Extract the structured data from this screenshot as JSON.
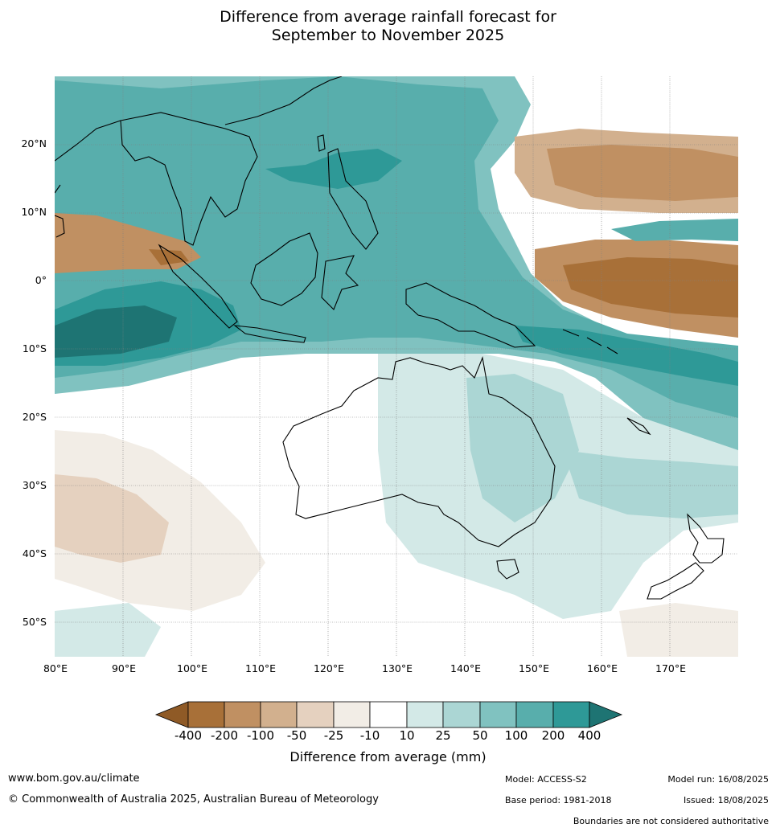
{
  "title_line1": "Difference from average rainfall forecast for",
  "title_line2": "September to November 2025",
  "lat_labels": [
    "20°N",
    "10°N",
    "0°",
    "10°S",
    "20°S",
    "30°S",
    "40°S",
    "50°S"
  ],
  "lon_labels": [
    "80°E",
    "90°E",
    "100°E",
    "110°E",
    "120°E",
    "130°E",
    "140°E",
    "150°E",
    "160°E",
    "170°E"
  ],
  "colorbar": {
    "label": "Difference from average (mm)",
    "ticks": [
      "-400",
      "-200",
      "-100",
      "-50",
      "-25",
      "-10",
      "10",
      "25",
      "50",
      "100",
      "200",
      "400"
    ],
    "colors": [
      "#8f5a26",
      "#a87038",
      "#c09062",
      "#d2b08e",
      "#e5d1bf",
      "#f2ede6",
      "#ffffff",
      "#d3e9e7",
      "#abd6d4",
      "#80c2c0",
      "#58aeac",
      "#2e9997",
      "#1e7473"
    ]
  },
  "footer": {
    "url": "www.bom.gov.au/climate",
    "copyright": "© Commonwealth of Australia 2025, Australian Bureau of Meteorology",
    "model": "Model: ACCESS-S2",
    "base_period": "Base period: 1981-2018",
    "model_run": "Model run: 16/08/2025",
    "issued": "Issued: 18/08/2025",
    "boundaries": "Boundaries are not considered authoritative"
  }
}
